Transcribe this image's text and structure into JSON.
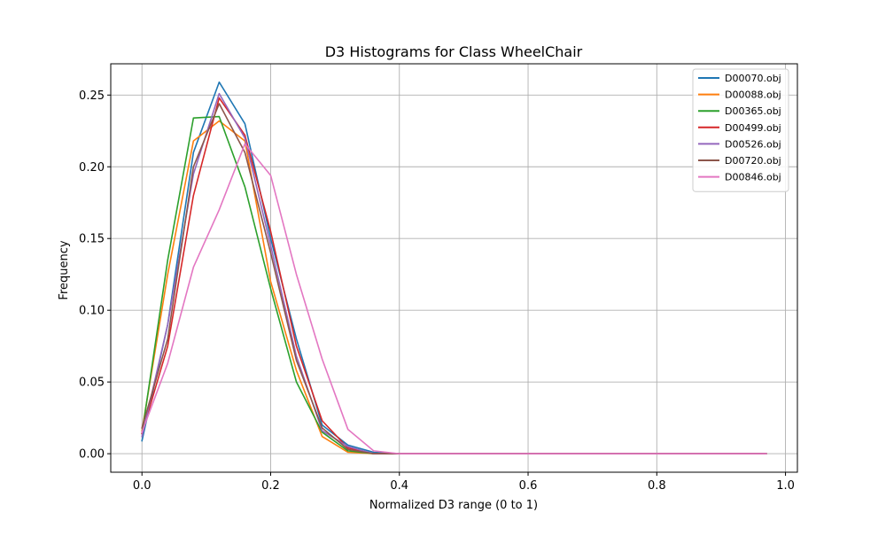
{
  "chart_data": {
    "type": "line",
    "title": "D3 Histograms for Class WheelChair",
    "xlabel": "Normalized D3 range (0 to 1)",
    "ylabel": "Frequency",
    "xlim": [
      -0.0485,
      1.0185
    ],
    "ylim": [
      -0.0129,
      0.2718
    ],
    "xticks": [
      0.0,
      0.2,
      0.4,
      0.6,
      0.8,
      1.0
    ],
    "xtick_labels": [
      "0.0",
      "0.2",
      "0.4",
      "0.6",
      "0.8",
      "1.0"
    ],
    "yticks": [
      0.0,
      0.05,
      0.1,
      0.15,
      0.2,
      0.25
    ],
    "ytick_labels": [
      "0.00",
      "0.05",
      "0.10",
      "0.15",
      "0.20",
      "0.25"
    ],
    "grid": true,
    "legend_position": "top-right",
    "x": [
      0.0,
      0.04,
      0.08,
      0.12,
      0.16,
      0.2,
      0.24,
      0.28,
      0.32,
      0.36,
      0.4,
      0.44,
      0.48,
      0.52,
      0.56,
      0.6,
      0.64,
      0.68,
      0.72,
      0.76,
      0.8,
      0.84,
      0.88,
      0.92,
      0.97
    ],
    "series": [
      {
        "name": "D00070.obj",
        "color": "#1f77b4",
        "values": [
          0.009,
          0.09,
          0.21,
          0.259,
          0.23,
          0.15,
          0.08,
          0.02,
          0.006,
          0.001,
          0,
          0,
          0,
          0,
          0,
          0,
          0,
          0,
          0,
          0,
          0,
          0,
          0,
          0,
          0
        ]
      },
      {
        "name": "D00088.obj",
        "color": "#ff7f0e",
        "values": [
          0.016,
          0.125,
          0.218,
          0.232,
          0.218,
          0.12,
          0.058,
          0.012,
          0.001,
          0.0,
          0,
          0,
          0,
          0,
          0,
          0,
          0,
          0,
          0,
          0,
          0,
          0,
          0,
          0,
          0
        ]
      },
      {
        "name": "D00365.obj",
        "color": "#2ca02c",
        "values": [
          0.014,
          0.135,
          0.234,
          0.235,
          0.186,
          0.115,
          0.05,
          0.015,
          0.002,
          0.0,
          0,
          0,
          0,
          0,
          0,
          0,
          0,
          0,
          0,
          0,
          0,
          0,
          0,
          0,
          0
        ]
      },
      {
        "name": "D00499.obj",
        "color": "#d62728",
        "values": [
          0.014,
          0.075,
          0.18,
          0.248,
          0.222,
          0.155,
          0.075,
          0.023,
          0.004,
          0.0,
          0,
          0,
          0,
          0,
          0,
          0,
          0,
          0,
          0,
          0,
          0,
          0,
          0,
          0,
          0
        ]
      },
      {
        "name": "D00526.obj",
        "color": "#9467bd",
        "values": [
          0.012,
          0.09,
          0.195,
          0.251,
          0.22,
          0.145,
          0.068,
          0.016,
          0.005,
          0.0,
          0,
          0,
          0,
          0,
          0,
          0,
          0,
          0,
          0,
          0,
          0,
          0,
          0,
          0,
          0
        ]
      },
      {
        "name": "D00720.obj",
        "color": "#8c564b",
        "values": [
          0.018,
          0.08,
          0.2,
          0.244,
          0.21,
          0.14,
          0.065,
          0.018,
          0.003,
          0.0,
          0,
          0,
          0,
          0,
          0,
          0,
          0,
          0,
          0,
          0,
          0,
          0,
          0,
          0,
          0
        ]
      },
      {
        "name": "D00846.obj",
        "color": "#e377c2",
        "values": [
          0.015,
          0.063,
          0.13,
          0.17,
          0.216,
          0.194,
          0.125,
          0.066,
          0.017,
          0.002,
          0,
          0,
          0,
          0,
          0,
          0,
          0,
          0,
          0,
          0,
          0,
          0,
          0,
          0,
          0
        ]
      }
    ]
  }
}
